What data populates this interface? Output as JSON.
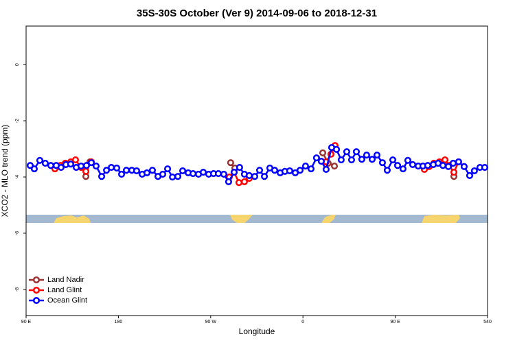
{
  "chart_data": {
    "type": "line",
    "title": "35S-30S October (Ver 9)   2014-09-06 to 2018-12-31",
    "x_label": "Longitude",
    "y_label": "XCO2 - MLO trend (ppm)",
    "xlim": [
      90,
      540
    ],
    "ylim": [
      -8.93,
      1.37
    ],
    "xticks": [
      {
        "value": 90,
        "label": "90 E"
      },
      180,
      {
        "value": 270,
        "label": "90 W"
      },
      {
        "value": 360,
        "label": "0"
      },
      {
        "value": 450,
        "label": "90 E"
      },
      540
    ],
    "yticks": [
      0,
      -2,
      -4,
      -6,
      -8
    ],
    "legend": "bottom-left",
    "series": [
      {
        "name": "Land Nadir",
        "color": "#993333",
        "x": [
          148.3,
          152.3,
          null,
          289.5,
          293.6,
          null,
          379.3,
          384.6,
          390.7,
          null,
          507.2
        ],
        "values": [
          -3.98,
          -3.46,
          null,
          -3.49,
          -3.68,
          null,
          -3.14,
          -3.51,
          -3.61,
          null,
          -3.98
        ]
      },
      {
        "name": "Land Glint",
        "color": "#ff0000",
        "x": [
          118.1,
          123.5,
          128.2,
          133.5,
          138.2,
          143.6,
          148.3,
          153.6,
          null,
          288.2,
          292.9,
          297.6,
          302.9,
          307.6,
          null,
          382.6,
          387.3,
          391.3,
          null,
          478.4,
          483.1,
          487.7,
          493.1,
          498.5,
          502.5,
          507.2,
          511.8
        ],
        "values": [
          -3.71,
          -3.59,
          -3.51,
          -3.46,
          -3.39,
          -3.66,
          -3.8,
          -3.46,
          null,
          -4.0,
          -3.83,
          -4.2,
          -4.17,
          -4.05,
          null,
          -3.46,
          -3.19,
          -2.88,
          null,
          -3.73,
          -3.63,
          -3.51,
          -3.46,
          -3.39,
          -3.59,
          -3.83,
          -3.46
        ]
      },
      {
        "name": "Ocean Glint",
        "color": "#0000ff",
        "x": [
          94.0,
          98.0,
          103.4,
          108.7,
          114.1,
          119.4,
          124.1,
          128.8,
          133.5,
          138.9,
          143.6,
          148.9,
          153.6,
          158.3,
          163.7,
          168.4,
          173.1,
          178.4,
          183.1,
          187.8,
          193.1,
          197.8,
          203.2,
          207.9,
          213.2,
          218.6,
          223.3,
          228.0,
          232.7,
          238.0,
          242.7,
          248.1,
          252.8,
          258.1,
          262.8,
          268.1,
          272.8,
          277.5,
          282.8,
          287.5,
          292.9,
          298.2,
          302.9,
          307.6,
          313.0,
          317.7,
          322.4,
          327.7,
          332.4,
          337.8,
          342.4,
          347.1,
          352.5,
          357.2,
          362.5,
          367.9,
          373.2,
          377.9,
          382.6,
          388.0,
          392.7,
          397.3,
          402.7,
          407.4,
          412.1,
          417.4,
          422.1,
          427.5,
          432.2,
          437.5,
          442.2,
          447.6,
          452.3,
          457.6,
          462.3,
          467.0,
          472.4,
          477.0,
          481.7,
          487.1,
          491.8,
          496.5,
          501.8,
          506.5,
          511.8,
          517.2,
          522.6,
          527.2,
          532.6,
          537.3
        ],
        "values": [
          -3.59,
          -3.71,
          -3.41,
          -3.51,
          -3.59,
          -3.59,
          -3.66,
          -3.56,
          -3.54,
          -3.66,
          -3.61,
          -3.59,
          -3.49,
          -3.61,
          -3.98,
          -3.76,
          -3.66,
          -3.68,
          -3.9,
          -3.76,
          -3.76,
          -3.78,
          -3.9,
          -3.85,
          -3.76,
          -3.98,
          -3.9,
          -3.71,
          -4.0,
          -3.98,
          -3.78,
          -3.85,
          -3.88,
          -3.9,
          -3.83,
          -3.9,
          -3.88,
          -3.88,
          -3.9,
          -4.17,
          -3.83,
          -3.66,
          -3.9,
          -3.95,
          -3.98,
          -3.76,
          -3.98,
          -3.68,
          -3.76,
          -3.85,
          -3.8,
          -3.78,
          -3.85,
          -3.76,
          -3.61,
          -3.71,
          -3.32,
          -3.44,
          -3.73,
          -2.95,
          -3.02,
          -3.39,
          -3.1,
          -3.39,
          -3.1,
          -3.37,
          -3.22,
          -3.37,
          -3.22,
          -3.49,
          -3.76,
          -3.39,
          -3.59,
          -3.71,
          -3.41,
          -3.56,
          -3.61,
          -3.61,
          -3.59,
          -3.56,
          -3.51,
          -3.59,
          -3.63,
          -3.51,
          -3.46,
          -3.63,
          -3.95,
          -3.78,
          -3.66,
          -3.66
        ]
      }
    ]
  }
}
